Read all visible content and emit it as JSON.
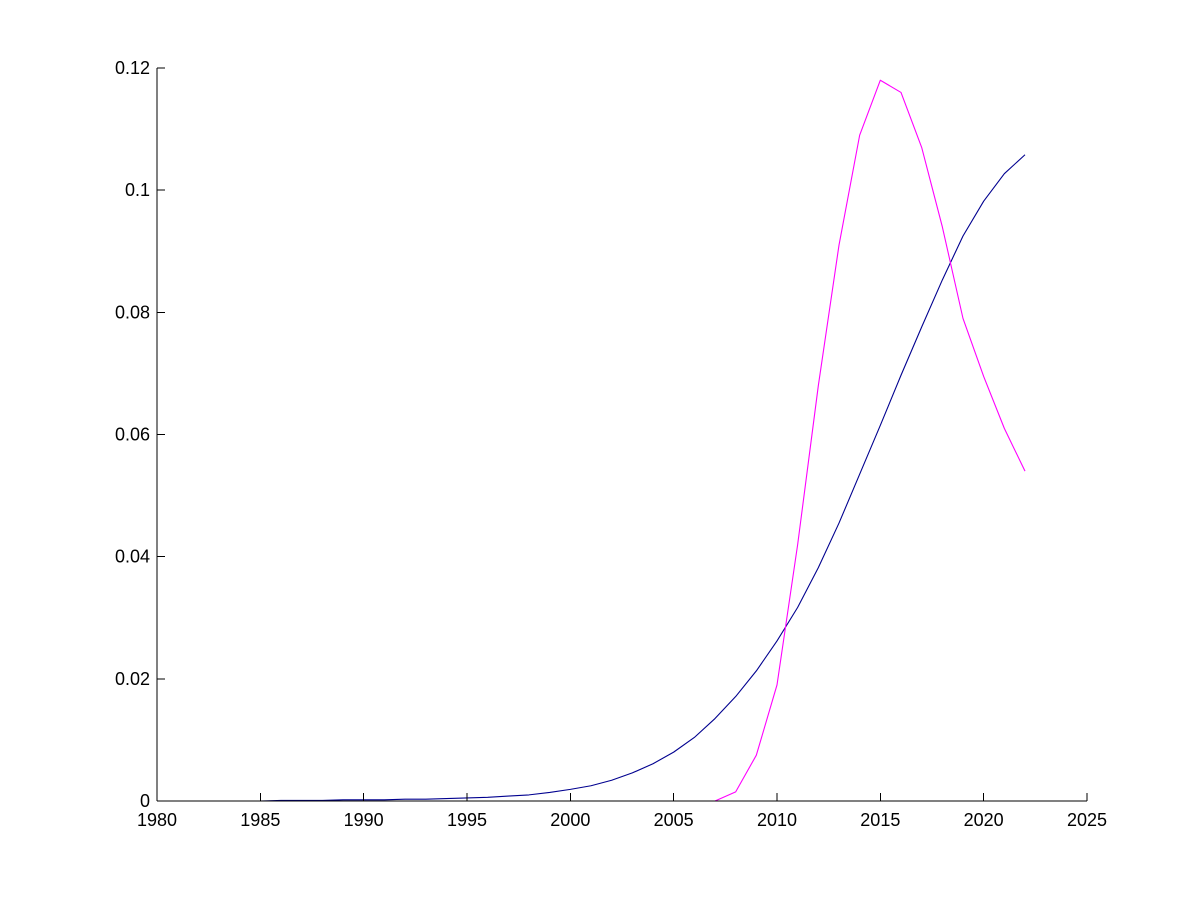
{
  "chart_data": {
    "type": "line",
    "title": "",
    "xlabel": "",
    "ylabel": "",
    "xlim": [
      1980,
      2025
    ],
    "ylim": [
      0,
      0.12
    ],
    "grid": false,
    "legend": "none",
    "x_ticks": [
      1980,
      1985,
      1990,
      1995,
      2000,
      2005,
      2010,
      2015,
      2020,
      2025
    ],
    "x_tick_labels": [
      "1980",
      "1985",
      "1990",
      "1995",
      "2000",
      "2005",
      "2010",
      "2015",
      "2020",
      "2025"
    ],
    "y_ticks": [
      0,
      0.02,
      0.04,
      0.06,
      0.08,
      0.1,
      0.12
    ],
    "y_tick_labels": [
      "0",
      "0.02",
      "0.04",
      "0.06",
      "0.08",
      "0.1",
      "0.12"
    ],
    "series": [
      {
        "color": "#00008f",
        "x": [
          1980,
          1981,
          1982,
          1983,
          1984,
          1985,
          1986,
          1987,
          1988,
          1989,
          1990,
          1991,
          1992,
          1993,
          1994,
          1995,
          1996,
          1997,
          1998,
          1999,
          2000,
          2001,
          2002,
          2003,
          2004,
          2005,
          2006,
          2007,
          2008,
          2009,
          2010,
          2011,
          2012,
          2013,
          2014,
          2015,
          2016,
          2017,
          2018,
          2019,
          2020,
          2021,
          2022
        ],
        "y": [
          0,
          0,
          0,
          0,
          0,
          0,
          0.0001,
          0.0001,
          0.0001,
          0.0002,
          0.0002,
          0.0002,
          0.0003,
          0.0003,
          0.0004,
          0.0005,
          0.0006,
          0.0008,
          0.001,
          0.0014,
          0.0019,
          0.0025,
          0.0034,
          0.0046,
          0.0061,
          0.008,
          0.0104,
          0.0135,
          0.0171,
          0.0213,
          0.0262,
          0.0317,
          0.0382,
          0.0455,
          0.0535,
          0.0615,
          0.0697,
          0.0776,
          0.0853,
          0.0925,
          0.0982,
          0.1027,
          0.1058
        ]
      },
      {
        "color": "#ff00ff",
        "x": [
          1980,
          2007,
          2008,
          2009,
          2010,
          2011,
          2012,
          2013,
          2014,
          2015,
          2016,
          2017,
          2018,
          2019,
          2020,
          2021,
          2022
        ],
        "y": [
          0,
          0,
          0.0015,
          0.0075,
          0.019,
          0.042,
          0.068,
          0.091,
          0.109,
          0.118,
          0.116,
          0.107,
          0.094,
          0.079,
          0.0695,
          0.061,
          0.054
        ]
      }
    ]
  }
}
